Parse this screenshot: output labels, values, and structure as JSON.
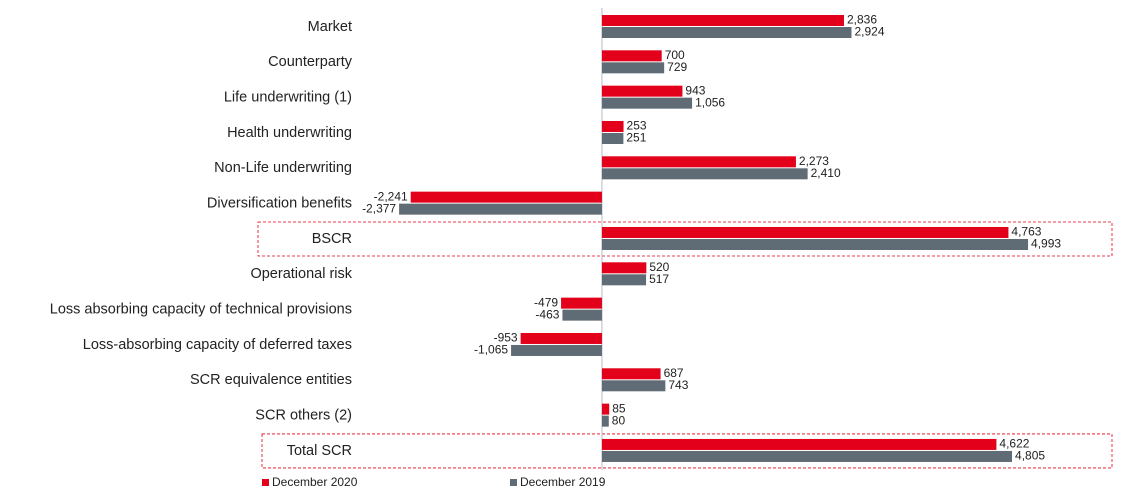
{
  "chart_data": {
    "type": "bar",
    "orientation": "horizontal",
    "categories": [
      "Market",
      "Counterparty",
      "Life underwriting (1)",
      "Health underwriting",
      "Non-Life underwriting",
      "Diversification benefits",
      "BSCR",
      "Operational risk",
      "Loss absorbing capacity of technical provisions",
      "Loss-absorbing capacity of deferred taxes",
      "SCR equivalence entities",
      "SCR others (2)",
      "Total SCR"
    ],
    "series": [
      {
        "name": "December 2020",
        "color": "#e2001a",
        "values": [
          2836,
          700,
          943,
          253,
          2273,
          -2241,
          4763,
          520,
          -479,
          -953,
          687,
          85,
          4622
        ],
        "value_labels": [
          "2,836",
          "700",
          "943",
          "253",
          "2,273",
          "-2,241",
          "4,763",
          "520",
          "-479",
          "-953",
          "687",
          "85",
          "4,622"
        ]
      },
      {
        "name": "December 2019",
        "color": "#5f6b75",
        "values": [
          2924,
          729,
          1056,
          251,
          2410,
          -2377,
          4993,
          517,
          -463,
          -1065,
          743,
          80,
          4805
        ],
        "value_labels": [
          "2,924",
          "729",
          "1,056",
          "251",
          "2,410",
          "-2,377",
          "4,993",
          "517",
          "-463",
          "-1,065",
          "743",
          "80",
          "4,805"
        ]
      }
    ],
    "xlim": [
      -2800,
      6000
    ],
    "highlighted": [
      6,
      12
    ],
    "legend": "bottom"
  }
}
